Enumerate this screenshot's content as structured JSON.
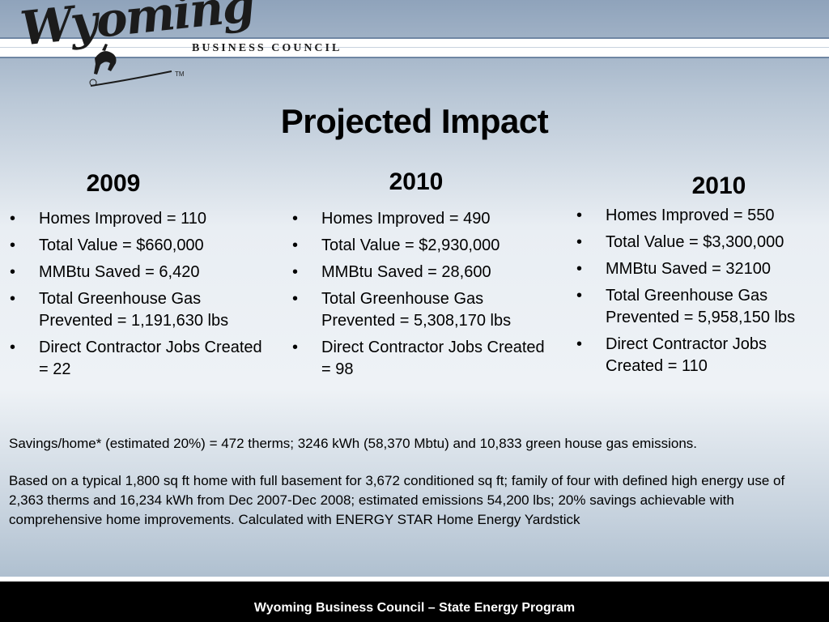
{
  "header": {
    "logo_text": "Wyoming",
    "org_name": "BUSINESS COUNCIL",
    "tm_mark": "TM"
  },
  "title": "Projected Impact",
  "columns": [
    {
      "year": "2009",
      "items": [
        "Homes Improved = 110",
        "Total Value = $660,000",
        "MMBtu Saved =   6,420",
        "Total Greenhouse Gas Prevented =  1,191,630 lbs",
        "Direct Contractor Jobs Created = 22"
      ]
    },
    {
      "year": "2010",
      "items": [
        "Homes Improved = 490",
        "Total Value = $2,930,000",
        "MMBtu Saved = 28,600",
        "Total Greenhouse Gas Prevented = 5,308,170 lbs",
        "Direct Contractor Jobs Created = 98"
      ]
    },
    {
      "year": "2010",
      "items": [
        "Homes Improved = 550",
        "Total Value = $3,300,000",
        "MMBtu Saved = 32100",
        "Total Greenhouse Gas Prevented =  5,958,150 lbs",
        "Direct Contractor Jobs Created = 110"
      ]
    }
  ],
  "notes": {
    "savings": "Savings/home* (estimated 20%) = 472 therms; 3246 kWh (58,370 Mbtu) and 10,833 green house gas emissions.",
    "basis": "Based on a typical 1,800 sq ft home with full basement for 3,672 conditioned sq ft; family of four with defined high energy use of 2,363 therms and 16,234 kWh from Dec 2007-Dec 2008; estimated emissions 54,200 lbs; 20% savings achievable with comprehensive home improvements.  Calculated with ENERGY STAR Home Energy Yardstick"
  },
  "footer": "Wyoming Business Council – State Energy Program"
}
